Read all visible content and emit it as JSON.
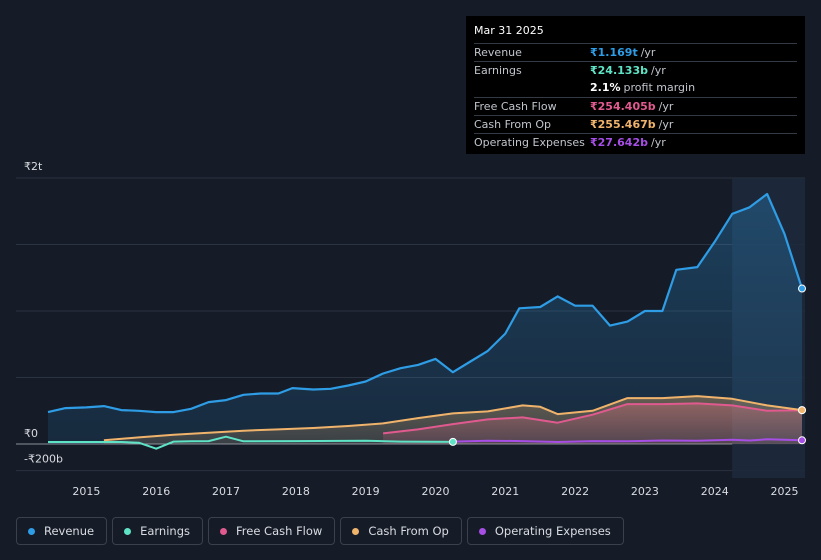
{
  "tooltip": {
    "date": "Mar 31 2025",
    "rows": [
      {
        "label": "Revenue",
        "value": "₹1.169t",
        "unit": "/yr",
        "color": "#2e9de6"
      },
      {
        "label": "Earnings",
        "value": "₹24.133b",
        "unit": "/yr",
        "color": "#5fe3c6"
      },
      {
        "label": "",
        "value": "2.1%",
        "unit": "profit margin",
        "color": "#ffffff"
      },
      {
        "label": "Free Cash Flow",
        "value": "₹254.405b",
        "unit": "/yr",
        "color": "#e05a8f"
      },
      {
        "label": "Cash From Op",
        "value": "₹255.467b",
        "unit": "/yr",
        "color": "#f0b36b"
      },
      {
        "label": "Operating Expenses",
        "value": "₹27.642b",
        "unit": "/yr",
        "color": "#a64ee5"
      }
    ]
  },
  "chart_data": {
    "type": "area",
    "title": "",
    "xlabel": "",
    "ylabel": "",
    "ylim": [
      -200,
      2000
    ],
    "y_ticks": [
      "₹2t",
      "₹0",
      "-₹200b"
    ],
    "y_tick_values": [
      2000,
      0,
      -200
    ],
    "x_ticks": [
      "2015",
      "2016",
      "2017",
      "2018",
      "2019",
      "2020",
      "2021",
      "2022",
      "2023",
      "2024",
      "2025"
    ],
    "x_tick_values": [
      2015,
      2016,
      2017,
      2018,
      2019,
      2020,
      2021,
      2022,
      2023,
      2024,
      2025
    ],
    "xlim": [
      2014.45,
      2025.25
    ],
    "forecast_start": 2024.25,
    "series": [
      {
        "name": "Revenue",
        "color": "#2e9de6",
        "fill": true,
        "points": [
          [
            2014.45,
            240
          ],
          [
            2014.7,
            270
          ],
          [
            2015.0,
            275
          ],
          [
            2015.25,
            285
          ],
          [
            2015.5,
            255
          ],
          [
            2015.75,
            250
          ],
          [
            2016.0,
            240
          ],
          [
            2016.25,
            240
          ],
          [
            2016.5,
            265
          ],
          [
            2016.75,
            315
          ],
          [
            2017.0,
            330
          ],
          [
            2017.25,
            370
          ],
          [
            2017.5,
            380
          ],
          [
            2017.75,
            380
          ],
          [
            2017.95,
            420
          ],
          [
            2018.25,
            410
          ],
          [
            2018.5,
            415
          ],
          [
            2018.75,
            440
          ],
          [
            2019.0,
            470
          ],
          [
            2019.25,
            530
          ],
          [
            2019.5,
            570
          ],
          [
            2019.75,
            595
          ],
          [
            2020.0,
            640
          ],
          [
            2020.25,
            540
          ],
          [
            2020.5,
            620
          ],
          [
            2020.75,
            700
          ],
          [
            2021.0,
            830
          ],
          [
            2021.2,
            1020
          ],
          [
            2021.5,
            1030
          ],
          [
            2021.75,
            1110
          ],
          [
            2022.0,
            1040
          ],
          [
            2022.25,
            1040
          ],
          [
            2022.5,
            890
          ],
          [
            2022.75,
            920
          ],
          [
            2023.0,
            1000
          ],
          [
            2023.25,
            1000
          ],
          [
            2023.45,
            1310
          ],
          [
            2023.75,
            1330
          ],
          [
            2024.0,
            1520
          ],
          [
            2024.25,
            1730
          ],
          [
            2024.5,
            1780
          ],
          [
            2024.75,
            1880
          ],
          [
            2025.0,
            1580
          ],
          [
            2025.25,
            1169
          ]
        ]
      },
      {
        "name": "Earnings",
        "color": "#5fe3c6",
        "fill": false,
        "points": [
          [
            2014.45,
            15
          ],
          [
            2015.5,
            15
          ],
          [
            2015.75,
            10
          ],
          [
            2016.0,
            -35
          ],
          [
            2016.25,
            18
          ],
          [
            2016.5,
            20
          ],
          [
            2016.75,
            22
          ],
          [
            2017.0,
            55
          ],
          [
            2017.25,
            20
          ],
          [
            2018.0,
            22
          ],
          [
            2019.0,
            25
          ],
          [
            2019.5,
            18
          ],
          [
            2020.25,
            16
          ]
        ]
      },
      {
        "name": "Free Cash Flow",
        "color": "#e05a8f",
        "fill": true,
        "points": [
          [
            2019.25,
            80
          ],
          [
            2019.75,
            110
          ],
          [
            2020.25,
            150
          ],
          [
            2020.75,
            185
          ],
          [
            2021.25,
            200
          ],
          [
            2021.75,
            160
          ],
          [
            2022.25,
            220
          ],
          [
            2022.75,
            300
          ],
          [
            2023.25,
            300
          ],
          [
            2023.75,
            305
          ],
          [
            2024.25,
            290
          ],
          [
            2024.75,
            250
          ],
          [
            2025.25,
            254
          ]
        ]
      },
      {
        "name": "Cash From Op",
        "color": "#f0b36b",
        "fill": true,
        "points": [
          [
            2015.25,
            28
          ],
          [
            2015.75,
            50
          ],
          [
            2016.25,
            70
          ],
          [
            2016.75,
            85
          ],
          [
            2017.25,
            100
          ],
          [
            2017.75,
            110
          ],
          [
            2018.25,
            120
          ],
          [
            2018.75,
            135
          ],
          [
            2019.25,
            155
          ],
          [
            2019.75,
            195
          ],
          [
            2020.25,
            230
          ],
          [
            2020.75,
            245
          ],
          [
            2021.25,
            290
          ],
          [
            2021.5,
            280
          ],
          [
            2021.75,
            225
          ],
          [
            2022.25,
            250
          ],
          [
            2022.75,
            345
          ],
          [
            2023.25,
            345
          ],
          [
            2023.75,
            360
          ],
          [
            2024.25,
            340
          ],
          [
            2024.75,
            290
          ],
          [
            2025.25,
            255
          ]
        ]
      },
      {
        "name": "Operating Expenses",
        "color": "#a64ee5",
        "fill": false,
        "points": [
          [
            2020.25,
            18
          ],
          [
            2020.75,
            25
          ],
          [
            2021.25,
            22
          ],
          [
            2021.75,
            15
          ],
          [
            2022.25,
            22
          ],
          [
            2022.75,
            20
          ],
          [
            2023.25,
            26
          ],
          [
            2023.75,
            24
          ],
          [
            2024.25,
            32
          ],
          [
            2024.5,
            26
          ],
          [
            2024.75,
            35
          ],
          [
            2025.25,
            28
          ]
        ]
      }
    ]
  },
  "legend": [
    {
      "label": "Revenue",
      "color": "#2e9de6"
    },
    {
      "label": "Earnings",
      "color": "#5fe3c6"
    },
    {
      "label": "Free Cash Flow",
      "color": "#e05a8f"
    },
    {
      "label": "Cash From Op",
      "color": "#f0b36b"
    },
    {
      "label": "Operating Expenses",
      "color": "#a64ee5"
    }
  ]
}
